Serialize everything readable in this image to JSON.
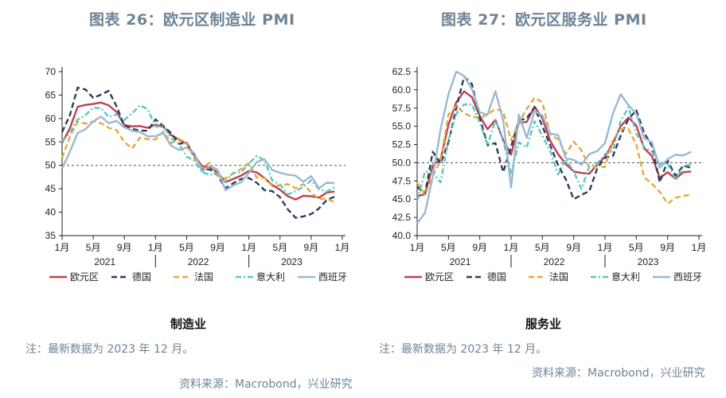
{
  "left": {
    "title": "图表 26：欧元区制造业 PMI",
    "subtitle": "制造业",
    "note": "注：最新数据为 2023 年 12 月。",
    "source": "资料来源：Macrobond，兴业研究"
  },
  "right": {
    "title": "图表 27：欧元区服务业 PMI",
    "subtitle": "服务业",
    "note": "注：最新数据为 2023 年 12 月。",
    "source": "资料来源：Macrobond，兴业研究"
  },
  "colors": {
    "eurozone": "#c0404e",
    "germany": "#2c3e5c",
    "france": "#e8a838",
    "italy": "#5bc8c0",
    "spain": "#9ab8d4",
    "reference": "#555555"
  },
  "chart_data": [
    {
      "type": "line",
      "title": "图表 26：欧元区制造业 PMI",
      "xlabel": "",
      "ylabel": "",
      "x_start": "2021-01",
      "x_ticks": [
        "1月",
        "5月",
        "9月",
        "1月",
        "5月",
        "9月",
        "1月",
        "5月",
        "9月",
        "1月"
      ],
      "x_year_labels": [
        "2021",
        "2022",
        "2023"
      ],
      "ylim": [
        35,
        70
      ],
      "y_ticks": [
        35,
        40,
        45,
        50,
        55,
        60,
        65,
        70
      ],
      "reference_line": 50,
      "legend_placement": "bottom",
      "grid": false,
      "series": [
        {
          "name": "欧元区",
          "key": "eurozone",
          "style": "solid",
          "values": [
            54.8,
            57.9,
            62.5,
            62.9,
            63.1,
            63.4,
            62.8,
            61.4,
            58.6,
            58.3,
            58.4,
            58.0,
            58.7,
            58.2,
            56.5,
            55.5,
            54.6,
            52.1,
            49.8,
            49.6,
            48.4,
            46.4,
            47.1,
            47.8,
            48.8,
            48.5,
            47.3,
            45.8,
            44.8,
            43.4,
            42.7,
            43.5,
            43.4,
            43.1,
            44.2,
            44.4
          ]
        },
        {
          "name": "德国",
          "key": "germany",
          "style": "dashed",
          "values": [
            57.1,
            60.7,
            66.6,
            66.2,
            64.4,
            65.1,
            65.9,
            62.6,
            58.4,
            57.8,
            57.4,
            57.4,
            59.8,
            58.4,
            56.9,
            54.6,
            54.8,
            52.0,
            49.3,
            49.1,
            47.8,
            45.1,
            46.2,
            47.1,
            47.3,
            46.3,
            44.7,
            44.5,
            43.2,
            40.6,
            38.8,
            39.1,
            39.6,
            40.8,
            42.6,
            43.3
          ]
        },
        {
          "name": "法国",
          "key": "france",
          "style": "dashed",
          "values": [
            51.6,
            56.1,
            59.3,
            58.9,
            59.4,
            59.0,
            58.0,
            57.5,
            55.0,
            53.6,
            55.9,
            55.6,
            55.5,
            57.2,
            54.7,
            55.7,
            54.6,
            51.4,
            49.5,
            50.6,
            47.7,
            47.2,
            48.3,
            49.2,
            50.5,
            47.4,
            47.3,
            45.6,
            45.7,
            46.0,
            45.1,
            46.0,
            44.2,
            42.8,
            42.9,
            42.1
          ]
        },
        {
          "name": "意大利",
          "key": "italy",
          "style": "dashdot",
          "values": [
            55.1,
            56.9,
            59.8,
            60.7,
            62.3,
            62.2,
            60.3,
            60.9,
            59.7,
            61.1,
            62.8,
            62.0,
            58.3,
            58.3,
            55.8,
            54.5,
            51.9,
            50.9,
            48.5,
            48.0,
            48.3,
            46.5,
            48.4,
            48.5,
            50.4,
            52.0,
            51.1,
            46.8,
            45.9,
            43.8,
            44.5,
            45.4,
            46.8,
            44.9,
            44.4,
            45.3
          ]
        },
        {
          "name": "西班牙",
          "key": "spain",
          "style": "solid",
          "values": [
            49.3,
            52.9,
            56.9,
            57.7,
            59.4,
            60.4,
            59.0,
            59.5,
            58.1,
            57.4,
            57.1,
            56.2,
            56.2,
            56.9,
            54.2,
            53.3,
            53.8,
            52.6,
            48.7,
            49.9,
            49.0,
            44.7,
            45.7,
            46.4,
            48.4,
            50.7,
            51.3,
            49.0,
            48.4,
            48.0,
            47.8,
            46.5,
            47.7,
            45.1,
            46.3,
            46.2
          ]
        }
      ]
    },
    {
      "type": "line",
      "title": "图表 27：欧元区服务业 PMI",
      "xlabel": "",
      "ylabel": "",
      "x_start": "2021-01",
      "x_ticks": [
        "1月",
        "5月",
        "9月",
        "1月",
        "5月",
        "9月",
        "1月",
        "5月",
        "9月",
        "1月"
      ],
      "x_year_labels": [
        "2021",
        "2022",
        "2023"
      ],
      "ylim": [
        40,
        62.5
      ],
      "y_ticks": [
        40.0,
        42.5,
        45.0,
        47.5,
        50.0,
        52.5,
        55.0,
        57.5,
        60.0,
        62.5
      ],
      "reference_line": 50,
      "legend_placement": "bottom",
      "grid": false,
      "series": [
        {
          "name": "欧元区",
          "key": "eurozone",
          "style": "solid",
          "values": [
            45.4,
            45.7,
            49.6,
            50.5,
            55.2,
            58.3,
            59.8,
            59.0,
            56.4,
            54.6,
            55.9,
            53.1,
            51.1,
            55.5,
            55.6,
            57.7,
            56.1,
            53.0,
            51.2,
            49.8,
            48.8,
            48.6,
            48.5,
            49.8,
            50.8,
            52.7,
            55.0,
            56.2,
            55.1,
            52.0,
            50.9,
            47.9,
            48.7,
            47.8,
            48.7,
            48.8
          ]
        },
        {
          "name": "德国",
          "key": "germany",
          "style": "dashed",
          "values": [
            46.7,
            45.7,
            51.5,
            49.9,
            52.8,
            57.5,
            61.8,
            60.8,
            56.2,
            52.4,
            52.7,
            48.7,
            52.2,
            55.8,
            56.1,
            57.6,
            55.0,
            52.4,
            49.7,
            47.7,
            45.0,
            45.6,
            46.1,
            49.2,
            50.7,
            50.9,
            53.7,
            56.0,
            57.2,
            54.1,
            52.3,
            47.3,
            50.3,
            48.2,
            49.6,
            49.3
          ]
        },
        {
          "name": "法国",
          "key": "france",
          "style": "dashed",
          "values": [
            47.3,
            45.6,
            48.2,
            50.3,
            56.6,
            57.8,
            56.8,
            56.3,
            56.2,
            56.6,
            57.4,
            57.0,
            53.1,
            55.5,
            57.4,
            58.9,
            58.3,
            53.9,
            53.2,
            51.2,
            52.9,
            51.7,
            49.3,
            49.5,
            49.4,
            53.1,
            54.6,
            54.6,
            52.5,
            48.0,
            47.1,
            46.0,
            44.4,
            45.2,
            45.4,
            45.7
          ]
        },
        {
          "name": "意大利",
          "key": "italy",
          "style": "dashdot",
          "values": [
            44.7,
            48.8,
            48.6,
            47.3,
            53.1,
            56.7,
            58.0,
            58.0,
            55.5,
            52.4,
            55.9,
            53.0,
            48.5,
            52.8,
            52.1,
            55.7,
            53.7,
            51.6,
            48.4,
            50.5,
            48.8,
            46.4,
            49.5,
            49.9,
            51.2,
            51.6,
            55.7,
            57.6,
            54.0,
            52.2,
            51.5,
            49.8,
            49.9,
            47.7,
            49.5,
            49.8
          ]
        },
        {
          "name": "西班牙",
          "key": "spain",
          "style": "solid",
          "values": [
            41.7,
            43.1,
            48.1,
            54.6,
            59.4,
            62.5,
            61.9,
            60.1,
            56.9,
            56.6,
            59.8,
            55.8,
            46.6,
            56.6,
            53.4,
            57.1,
            56.5,
            54.0,
            53.8,
            50.6,
            50.4,
            49.7,
            51.2,
            51.6,
            52.7,
            56.7,
            59.4,
            57.9,
            56.7,
            53.4,
            52.8,
            49.3,
            50.5,
            51.1,
            51.0,
            51.5
          ]
        }
      ]
    }
  ],
  "legend_labels": [
    "欧元区",
    "德国",
    "法国",
    "意大利",
    "西班牙"
  ]
}
